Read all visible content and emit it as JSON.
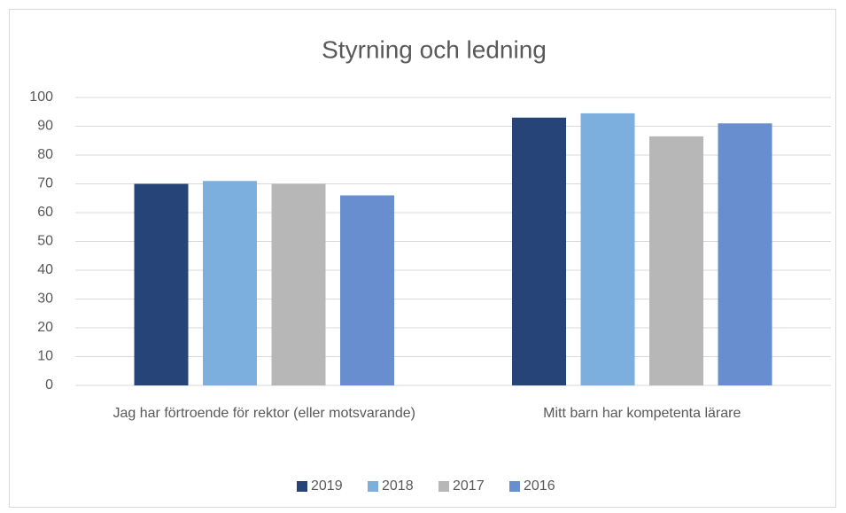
{
  "chart_data": {
    "type": "bar",
    "title": "Styrning och ledning",
    "categories": [
      "Jag har förtroende för rektor (eller motsvarande)",
      "Mitt barn har kompetenta lärare"
    ],
    "series": [
      {
        "name": "2019",
        "color": "#264478",
        "values": [
          70,
          93
        ]
      },
      {
        "name": "2018",
        "color": "#7cafdd",
        "values": [
          71,
          94.5
        ]
      },
      {
        "name": "2017",
        "color": "#b7b7b7",
        "values": [
          70,
          86.5
        ]
      },
      {
        "name": "2016",
        "color": "#698ed0",
        "values": [
          66,
          91
        ]
      }
    ],
    "ylim": [
      0,
      100
    ],
    "yticks": [
      0,
      10,
      20,
      30,
      40,
      50,
      60,
      70,
      80,
      90,
      100
    ],
    "grid": true,
    "legend": "bottom"
  }
}
